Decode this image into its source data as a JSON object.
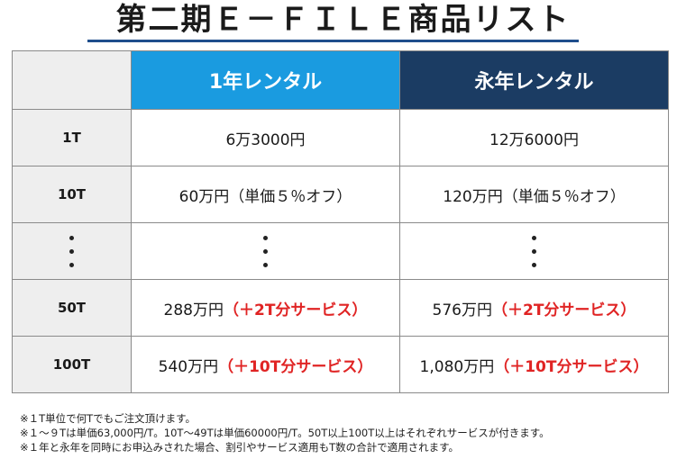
{
  "title": "第二期Ｅ－ＦＩＬＥ商品リスト",
  "table": {
    "headers": [
      "",
      "1年レンタル",
      "永年レンタル"
    ],
    "rows": [
      {
        "label": "1T",
        "col1": "6万3000円",
        "col1_extra": "",
        "col2": "12万6000円",
        "col2_extra": ""
      },
      {
        "label": "10T",
        "col1": "60万円（単価５％オフ）",
        "col1_extra": "",
        "col2": "120万円（単価５％オフ）",
        "col2_extra": ""
      },
      {
        "label": "・・・",
        "col1": "・・・",
        "col1_extra": "",
        "col2": "・・・",
        "col2_extra": ""
      },
      {
        "label": "50T",
        "col1": "288万円",
        "col1_extra": "（＋2T分サービス）",
        "col2": "576万円",
        "col2_extra": "（＋2T分サービス）"
      },
      {
        "label": "100T",
        "col1": "540万円",
        "col1_extra": "（＋10T分サービス）",
        "col2": "1,080万円",
        "col2_extra": "（＋10T分サービス）"
      }
    ]
  },
  "notes": [
    "※１T単位で何Tでもご注文頂けます。",
    "※１～９Tは単価63,000円/T。10T～49Tは単価60000円/T。50T以上100T以上はそれぞれサービスが付きます。",
    "※１年と永年を同時にお申込みされた場合、割引やサービス適用もT数の合計で適用されます。"
  ],
  "colors": {
    "col1_header": "#1a9be0",
    "col2_header": "#1b3c63",
    "service_text": "#e02424"
  }
}
